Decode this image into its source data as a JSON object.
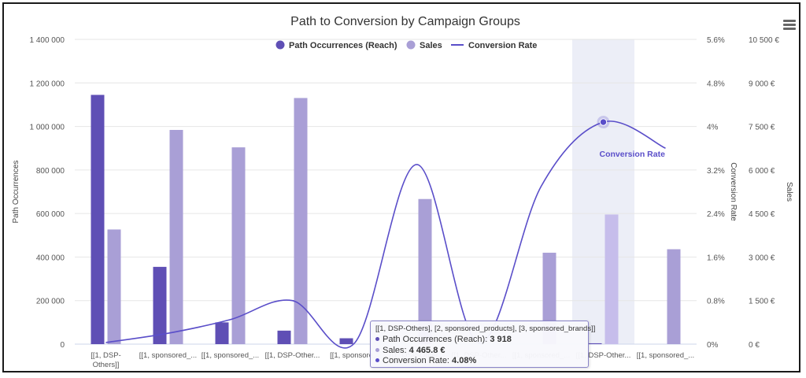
{
  "chart_data": {
    "type": "bar",
    "title": "Path to Conversion by Campaign Groups",
    "categories": [
      [
        "[[1, DSP-",
        "Others]]"
      ],
      [
        "[[1, sponsored_..."
      ],
      [
        "[[1, sponsored_..."
      ],
      [
        "[[1, DSP-Other..."
      ],
      [
        "[[1, sponsore..."
      ],
      [
        "[[1, DSP-Other..."
      ],
      [
        "[[1, DSP-Other..."
      ],
      [
        "[[1, sponsored_..."
      ],
      [
        "[[1, DSP-Other..."
      ],
      [
        "[[1, sponsored_..."
      ]
    ],
    "series": [
      {
        "name": "Path Occurrences (Reach)",
        "kind": "column",
        "axis": "left",
        "color": "#5f4fb5",
        "values": [
          1145000,
          355000,
          100000,
          62000,
          27000,
          0,
          0,
          0,
          3918,
          0
        ]
      },
      {
        "name": "Sales",
        "kind": "column",
        "axis": "right2",
        "color": "#a99fd6",
        "values": [
          3950,
          7380,
          6780,
          8480,
          0,
          5000,
          0,
          3150,
          4465.8,
          3270
        ]
      },
      {
        "name": "Conversion Rate",
        "kind": "spline",
        "axis": "right1",
        "color": "#5a4ec9",
        "values": [
          0.03,
          0.2,
          0.45,
          0.8,
          0.02,
          3.3,
          0.02,
          2.9,
          4.08,
          3.6
        ]
      }
    ],
    "axes": {
      "left": {
        "label": "Path Occurrences",
        "min": 0,
        "max": 1400000,
        "ticks": [
          "0",
          "200 000",
          "400 000",
          "600 000",
          "800 000",
          "1 000 000",
          "1 200 000",
          "1 400 000"
        ]
      },
      "right1": {
        "label": "Conversion Rate",
        "min": 0,
        "max": 5.6,
        "ticks": [
          "0%",
          "0.8%",
          "1.6%",
          "2.4%",
          "3.2%",
          "4%",
          "4.8%",
          "5.6%"
        ]
      },
      "right2": {
        "label": "Sales",
        "min": 0,
        "max": 10500,
        "ticks": [
          "0 €",
          "1 500 €",
          "3 000 €",
          "4 500 €",
          "6 000 €",
          "7 500 €",
          "9 000 €",
          "10 500 €"
        ]
      }
    },
    "legend_position": "top-center",
    "grid": true,
    "highlighted_index": 8,
    "annotation": "Conversion Rate"
  },
  "tooltip": {
    "header": "[[1, DSP-Others], [2, sponsored_products], [3, sponsored_brands]]",
    "rows": [
      {
        "label": "Path Occurrences (Reach): ",
        "value": "3 918",
        "color": "#5f4fb5"
      },
      {
        "label": "Sales: ",
        "value": "4 465.8 €",
        "color": "#a99fd6"
      },
      {
        "label": "Conversion Rate: ",
        "value": "4.08%",
        "color": "#5a4ec9"
      }
    ]
  }
}
